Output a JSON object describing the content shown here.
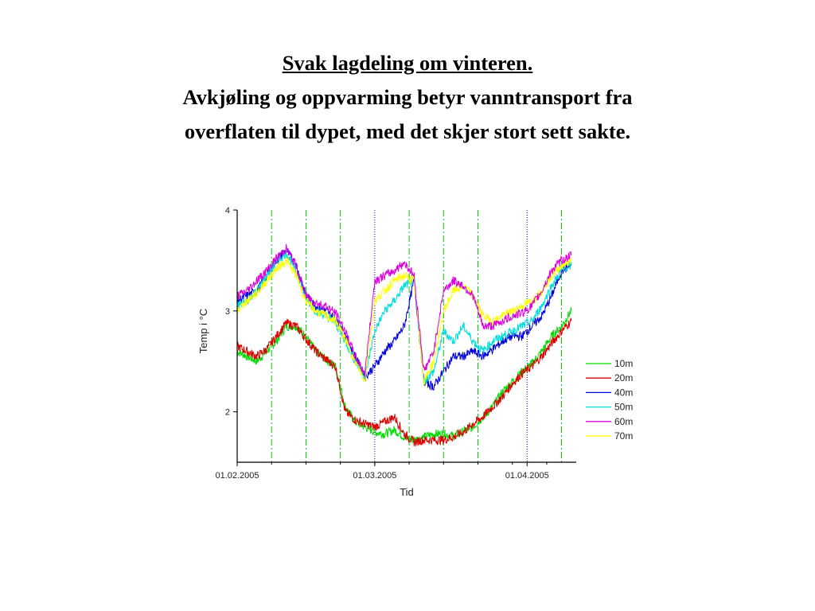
{
  "slide": {
    "title": "Svak lagdeling om vinteren.",
    "subtitle_line1": "Avkjøling og oppvarming betyr vanntransport fra",
    "subtitle_line2": "overflaten til dypet, med det skjer stort sett sakte."
  },
  "chart_data": {
    "type": "line",
    "xlabel": "Tid",
    "ylabel": "Temp i °C",
    "x_unit": "date",
    "xlim": [
      "2005-02-01",
      "2005-04-11"
    ],
    "ylim": [
      1.5,
      4.0
    ],
    "y_ticks": [
      2,
      3,
      4
    ],
    "y_tick_labels": [
      "2",
      "3",
      "4"
    ],
    "x_ticks": [
      "2005-02-01",
      "2005-03-01",
      "2005-04-01"
    ],
    "x_tick_labels": [
      "01.02.2005",
      "01.03.2005",
      "01.04.2005"
    ],
    "vertical_markers": [
      {
        "date": "2005-02-08",
        "style": "dashdot",
        "color": "#00cc00"
      },
      {
        "date": "2005-02-15",
        "style": "dashdot",
        "color": "#00cc00"
      },
      {
        "date": "2005-02-22",
        "style": "dashdot",
        "color": "#00cc00"
      },
      {
        "date": "2005-03-01",
        "style": "dotted",
        "color": "#0000cc"
      },
      {
        "date": "2005-03-08",
        "style": "dashdot",
        "color": "#00cc00"
      },
      {
        "date": "2005-03-15",
        "style": "dashdot",
        "color": "#00cc00"
      },
      {
        "date": "2005-03-22",
        "style": "dashdot",
        "color": "#00cc00"
      },
      {
        "date": "2005-04-01",
        "style": "dotted",
        "color": "#0000cc"
      },
      {
        "date": "2005-04-08",
        "style": "dashdot",
        "color": "#00cc00"
      }
    ],
    "grid": false,
    "legend_position": "right",
    "x": [
      "2005-02-01",
      "2005-02-03",
      "2005-02-05",
      "2005-02-07",
      "2005-02-09",
      "2005-02-11",
      "2005-02-13",
      "2005-02-15",
      "2005-02-17",
      "2005-02-19",
      "2005-02-21",
      "2005-02-23",
      "2005-02-25",
      "2005-02-27",
      "2005-03-01",
      "2005-03-03",
      "2005-03-05",
      "2005-03-07",
      "2005-03-09",
      "2005-03-11",
      "2005-03-13",
      "2005-03-15",
      "2005-03-17",
      "2005-03-19",
      "2005-03-21",
      "2005-03-23",
      "2005-03-25",
      "2005-03-27",
      "2005-03-29",
      "2005-03-31",
      "2005-04-02",
      "2005-04-04",
      "2005-04-06",
      "2005-04-08",
      "2005-04-10"
    ],
    "series": [
      {
        "name": "10m",
        "color": "#00dd00",
        "values": [
          2.6,
          2.55,
          2.5,
          2.6,
          2.7,
          2.85,
          2.85,
          2.75,
          2.6,
          2.52,
          2.45,
          2.05,
          1.9,
          1.85,
          1.8,
          1.78,
          1.82,
          1.75,
          1.72,
          1.75,
          1.78,
          1.78,
          1.76,
          1.8,
          1.85,
          1.95,
          2.05,
          2.2,
          2.3,
          2.4,
          2.48,
          2.6,
          2.75,
          2.85,
          3.0
        ]
      },
      {
        "name": "20m",
        "color": "#dd0000",
        "values": [
          2.65,
          2.6,
          2.55,
          2.62,
          2.75,
          2.88,
          2.85,
          2.72,
          2.6,
          2.52,
          2.45,
          2.0,
          1.92,
          1.88,
          1.85,
          1.9,
          1.95,
          1.78,
          1.7,
          1.72,
          1.72,
          1.72,
          1.75,
          1.8,
          1.88,
          1.95,
          2.05,
          2.15,
          2.28,
          2.38,
          2.45,
          2.55,
          2.68,
          2.8,
          2.9
        ]
      },
      {
        "name": "40m",
        "color": "#0000dd",
        "values": [
          3.1,
          3.15,
          3.2,
          3.35,
          3.5,
          3.6,
          3.45,
          3.15,
          3.05,
          3.0,
          2.92,
          2.75,
          2.55,
          2.35,
          2.45,
          2.6,
          2.7,
          2.85,
          3.3,
          2.3,
          2.25,
          2.4,
          2.55,
          2.55,
          2.6,
          2.55,
          2.62,
          2.7,
          2.75,
          2.75,
          2.85,
          2.95,
          3.15,
          3.4,
          3.45
        ]
      },
      {
        "name": "50m",
        "color": "#00dddd",
        "values": [
          3.05,
          3.1,
          3.2,
          3.35,
          3.48,
          3.58,
          3.4,
          3.12,
          3.0,
          2.95,
          2.88,
          2.7,
          2.5,
          2.35,
          2.8,
          3.0,
          3.1,
          3.25,
          3.3,
          2.3,
          2.4,
          2.8,
          2.7,
          2.85,
          2.7,
          2.6,
          2.7,
          2.75,
          2.8,
          2.85,
          2.9,
          3.05,
          3.25,
          3.4,
          3.45
        ]
      },
      {
        "name": "60m",
        "color": "#dd00dd",
        "values": [
          3.15,
          3.2,
          3.3,
          3.4,
          3.52,
          3.62,
          3.45,
          3.15,
          3.08,
          3.05,
          2.98,
          2.8,
          2.55,
          2.38,
          3.3,
          3.35,
          3.4,
          3.48,
          3.35,
          2.4,
          2.6,
          3.2,
          3.3,
          3.25,
          3.15,
          2.85,
          2.85,
          2.9,
          2.95,
          2.98,
          3.05,
          3.2,
          3.4,
          3.5,
          3.55
        ]
      },
      {
        "name": "70m",
        "color": "#ffff00",
        "values": [
          3.0,
          3.1,
          3.18,
          3.3,
          3.42,
          3.5,
          3.35,
          3.1,
          3.0,
          2.95,
          2.9,
          2.72,
          2.5,
          2.3,
          3.1,
          3.2,
          3.3,
          3.35,
          3.3,
          2.3,
          2.5,
          3.0,
          3.2,
          3.25,
          3.15,
          2.95,
          2.9,
          2.95,
          3.0,
          3.05,
          3.1,
          3.2,
          3.35,
          3.45,
          3.5
        ]
      }
    ]
  }
}
